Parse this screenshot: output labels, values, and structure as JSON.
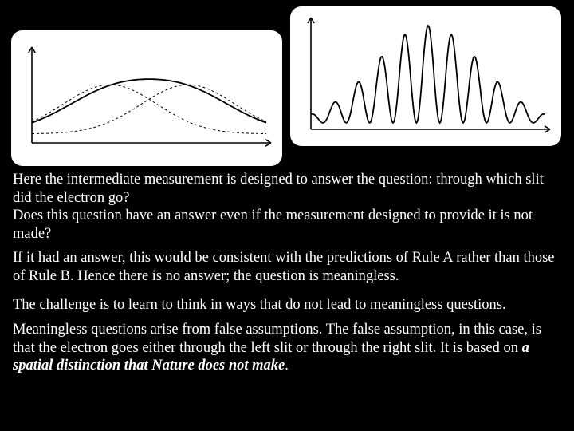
{
  "left_chart": {
    "type": "line",
    "background_color": "#ffffff",
    "axis_color": "#000000",
    "axis_width": 1.6,
    "arrow_size": 7,
    "xlim": [
      0,
      300
    ],
    "ylim": [
      0,
      100
    ],
    "series": [
      {
        "name": "left-gaussian",
        "stroke": "#000000",
        "width": 1.0,
        "dash": "3,3",
        "mu": 100,
        "sigma": 60,
        "amp": 55,
        "base": 10
      },
      {
        "name": "right-gaussian",
        "stroke": "#000000",
        "width": 1.0,
        "dash": "3,3",
        "mu": 200,
        "sigma": 60,
        "amp": 55,
        "base": 10
      },
      {
        "name": "sum",
        "stroke": "#000000",
        "width": 1.8,
        "dash": "",
        "mu1": 100,
        "mu2": 200,
        "sigma": 60,
        "amp": 42,
        "base": 12
      }
    ]
  },
  "right_chart": {
    "type": "line",
    "background_color": "#ffffff",
    "axis_color": "#000000",
    "axis_width": 1.6,
    "arrow_size": 7,
    "xlim": [
      0,
      300
    ],
    "ylim": [
      0,
      130
    ],
    "series": [
      {
        "name": "interference",
        "stroke": "#000000",
        "width": 1.8,
        "dash": "",
        "mu": 150,
        "sigma": 68,
        "amp": 120,
        "freq": 0.105,
        "base": 8
      }
    ]
  },
  "text": {
    "p1a": "Here the intermediate measurement is designed to answer the question: through which slit did the electron go?",
    "p1b": "Does this question have an answer even if the measurement designed to provide it is not made?",
    "p2": "If it had an answer, this would be consistent with the predictions of Rule A rather than those of Rule B. Hence there is no answer; the question is meaningless.",
    "p3": "The challenge is to learn to think in ways that do not lead to meaningless questions.",
    "p4a": "Meaningless questions arise from false assumptions. The false assumption, in this case, is that the electron goes either through the left slit or through the right slit. It is based on ",
    "p4emph": "a spatial distinction that Nature does not make",
    "p4b": "."
  },
  "colors": {
    "page_bg": "#000000",
    "text": "#ffffff",
    "card_bg": "#ffffff"
  }
}
